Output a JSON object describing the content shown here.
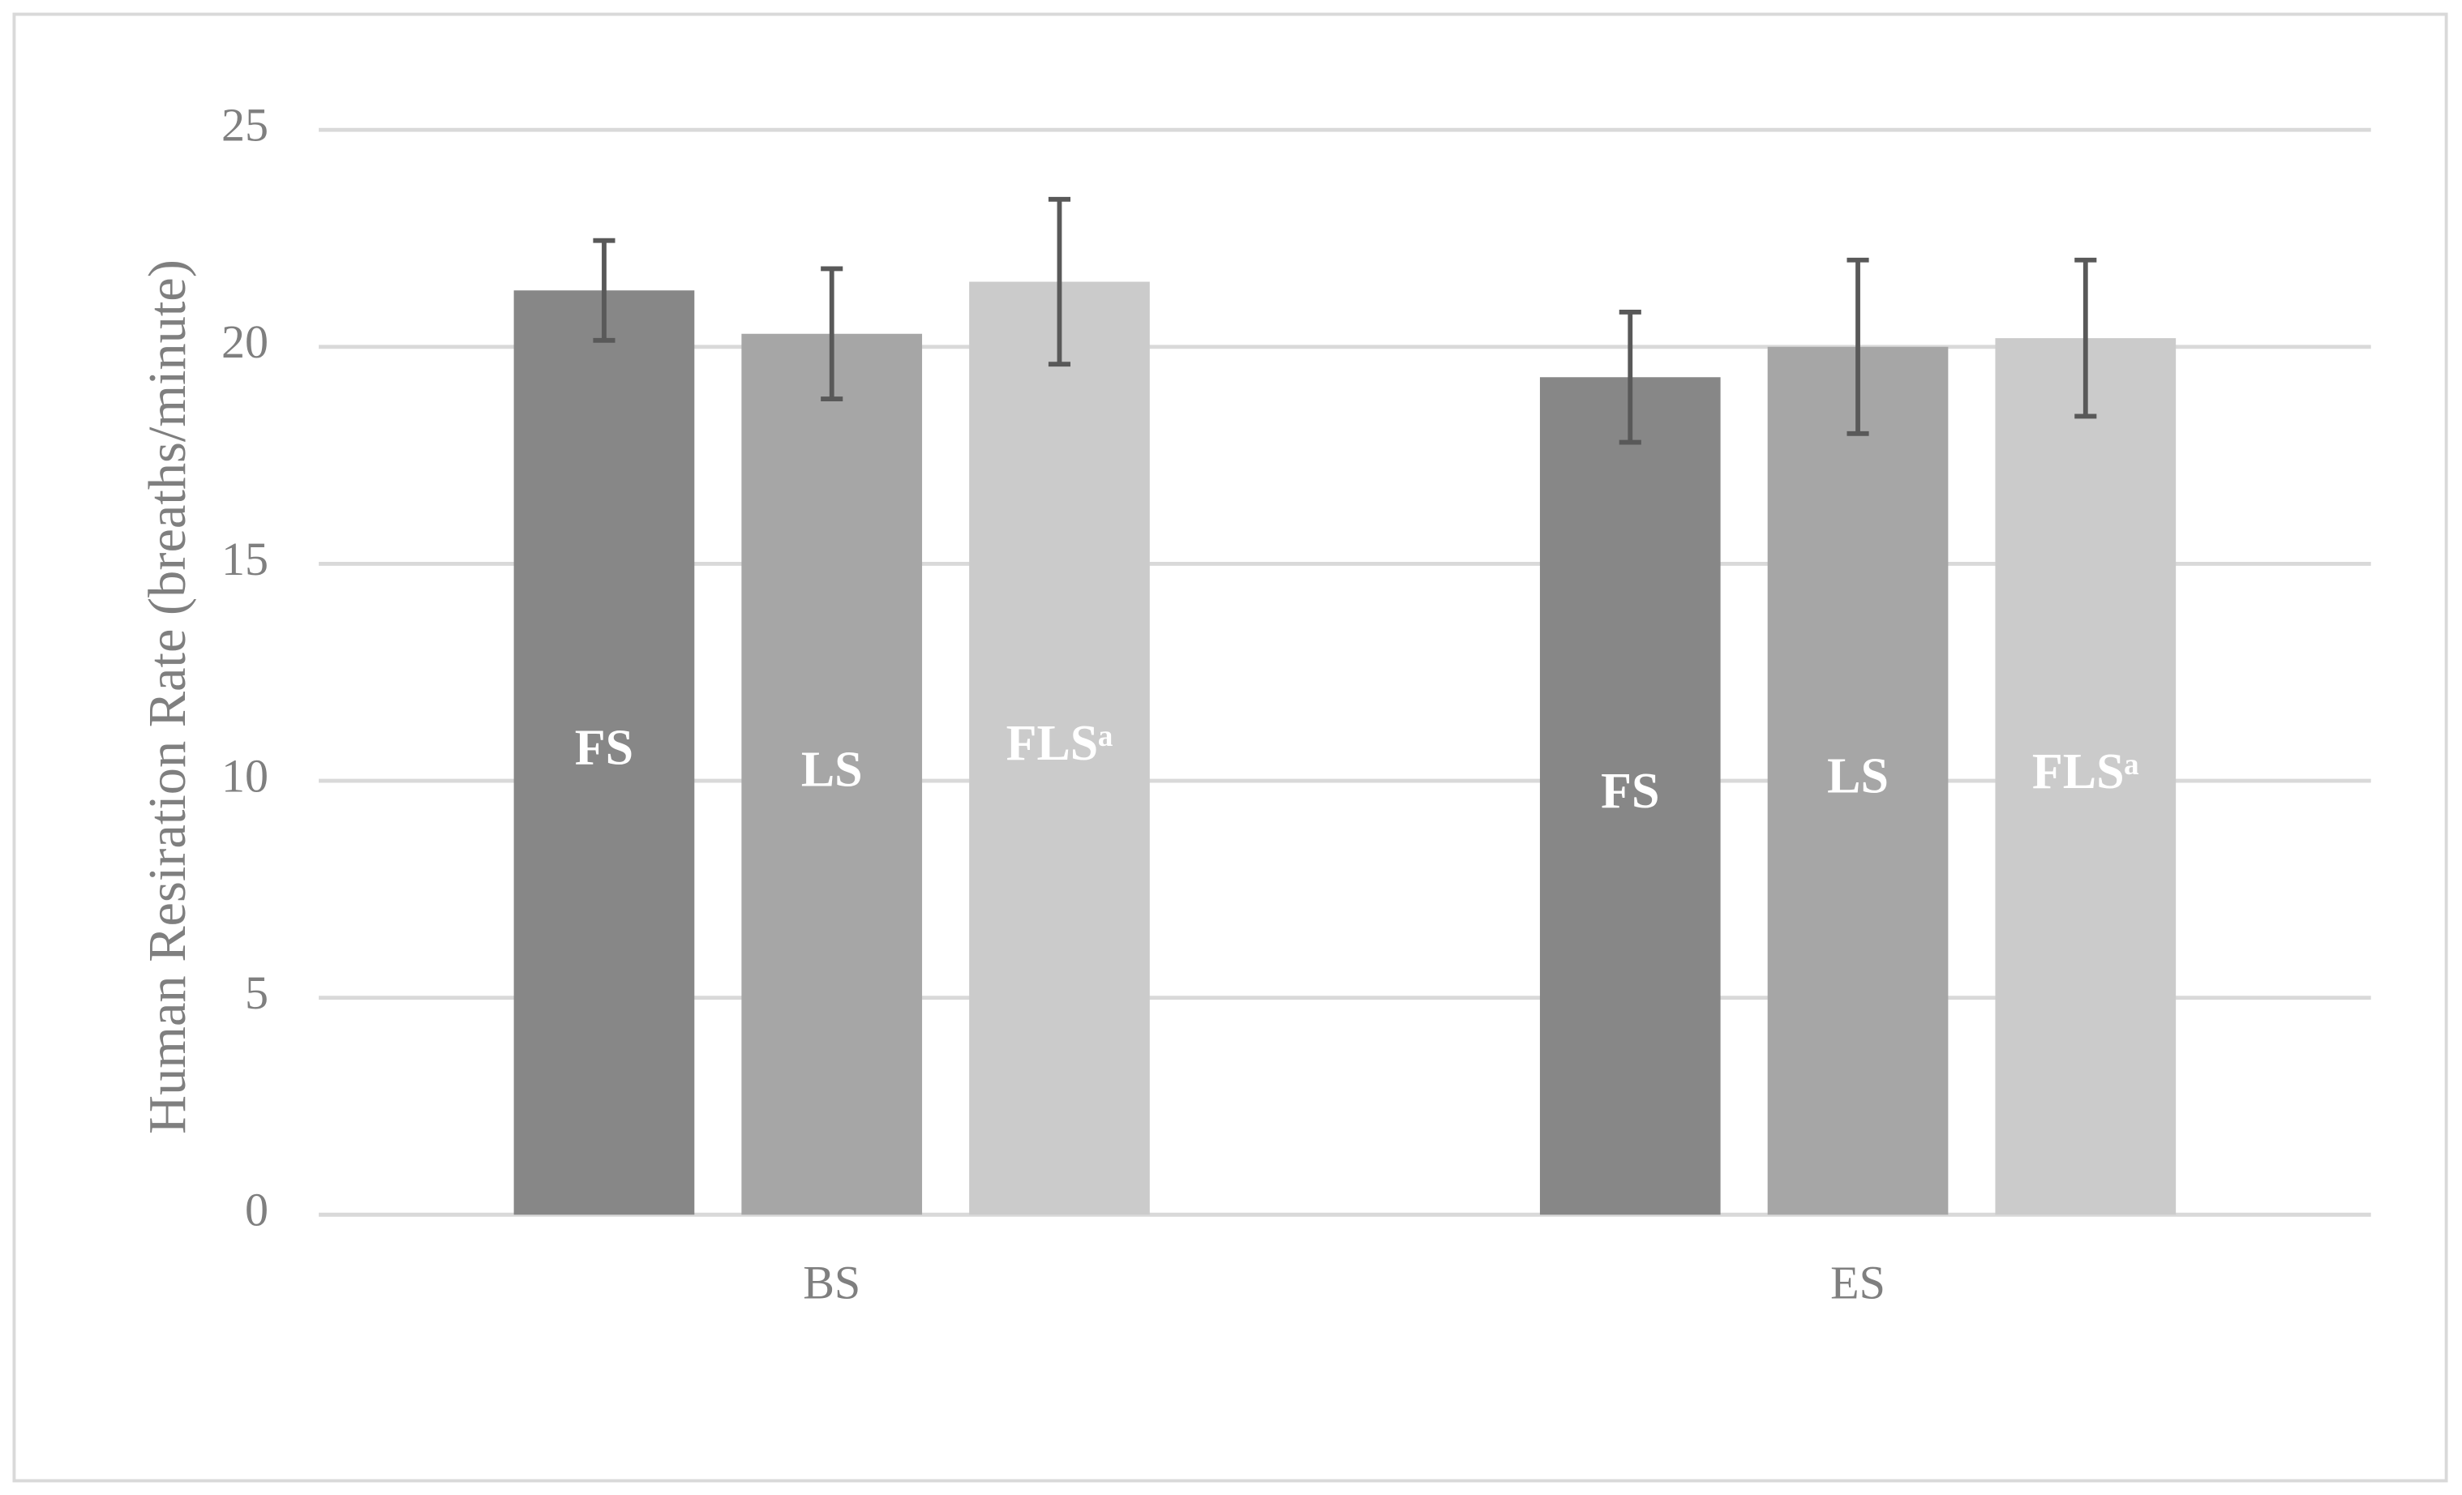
{
  "chart_data": {
    "type": "bar",
    "y_label": "Human Resiration Rate (breaths/minute)",
    "categories": [
      "BS",
      "ES"
    ],
    "series": [
      {
        "name": "FS",
        "color": "#878787",
        "values": [
          21.3,
          19.3
        ],
        "errors": [
          1.15,
          1.5
        ]
      },
      {
        "name": "LS",
        "color": "#a6a6a6",
        "values": [
          20.3,
          20.0
        ],
        "errors": [
          1.5,
          2.0
        ]
      },
      {
        "name": "FLSᵃ",
        "color": "#cbcbcb",
        "values": [
          21.5,
          20.2
        ],
        "errors": [
          1.9,
          1.8
        ]
      }
    ],
    "ylim": [
      0,
      25
    ],
    "yticks": [
      0,
      5,
      10,
      15,
      20,
      25
    ],
    "grid": true
  }
}
